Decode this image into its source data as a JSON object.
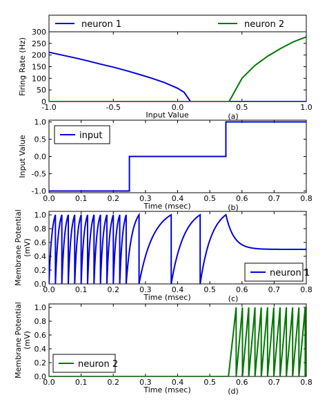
{
  "chart_data": [
    {
      "id": "a",
      "type": "line",
      "panel_label": "(a)",
      "xlabel": "Input Value",
      "ylabel": "Firing Rate (Hz)",
      "xlim": [
        -1.0,
        1.0
      ],
      "ylim": [
        0,
        300
      ],
      "xticks": [
        "-1.0",
        "-0.5",
        "0.0",
        "0.5",
        "1.0"
      ],
      "yticks": [
        "0",
        "50",
        "100",
        "150",
        "200",
        "250",
        "300"
      ],
      "legend_position": "top (outside, above axes)",
      "grid": false,
      "series": [
        {
          "name": "neuron 1",
          "color": "#0000dd",
          "x": [
            -1.0,
            -0.9,
            -0.8,
            -0.7,
            -0.6,
            -0.5,
            -0.4,
            -0.3,
            -0.2,
            -0.1,
            0.0,
            0.05,
            0.1,
            0.4,
            1.0
          ],
          "y": [
            212,
            200,
            188,
            175,
            161,
            148,
            133,
            117,
            100,
            81,
            57,
            40,
            0,
            0,
            0
          ]
        },
        {
          "name": "neuron 2",
          "color": "#007700",
          "x": [
            -1.0,
            0.4,
            0.5,
            0.6,
            0.7,
            0.8,
            0.9,
            1.0
          ],
          "y": [
            0,
            0,
            100,
            155,
            195,
            228,
            257,
            278
          ]
        }
      ]
    },
    {
      "id": "b",
      "type": "line",
      "panel_label": "(b)",
      "xlabel": "Time (msec)",
      "ylabel": "Input Value",
      "xlim": [
        0.0,
        0.8
      ],
      "ylim": [
        -1.05,
        1.05
      ],
      "xticks": [
        "0.0",
        "0.1",
        "0.2",
        "0.3",
        "0.4",
        "0.5",
        "0.6",
        "0.7",
        "0.8"
      ],
      "yticks": [
        "-1.0",
        "-0.5",
        "0.0",
        "0.5",
        "1.0"
      ],
      "legend_position": "upper left",
      "grid": false,
      "series": [
        {
          "name": "input",
          "color": "#0000dd",
          "x": [
            0.0,
            0.25,
            0.25,
            0.55,
            0.55,
            0.8
          ],
          "y": [
            -1.0,
            -1.0,
            0.0,
            0.0,
            1.0,
            1.0
          ]
        }
      ]
    },
    {
      "id": "c",
      "type": "line",
      "panel_label": "(c)",
      "xlabel": "Time (msec)",
      "ylabel": [
        "Membrane Potential",
        "(mV)"
      ],
      "xlim": [
        0.0,
        0.8
      ],
      "ylim": [
        0.0,
        1.05
      ],
      "xticks": [
        "0.0",
        "0.1",
        "0.2",
        "0.3",
        "0.4",
        "0.5",
        "0.6",
        "0.7",
        "0.8"
      ],
      "yticks": [
        "0.0",
        "0.2",
        "0.4",
        "0.6",
        "0.8",
        "1.0"
      ],
      "legend_position": "lower right",
      "grid": false,
      "series": [
        {
          "name": "neuron 1",
          "color": "#0000dd",
          "spike_times": [
            0.0,
            0.02,
            0.04,
            0.06,
            0.08,
            0.1,
            0.12,
            0.14,
            0.16,
            0.18,
            0.2,
            0.22,
            0.24,
            0.28,
            0.38,
            0.47
          ],
          "decay_start": 0.55,
          "steady_value": 0.5
        }
      ]
    },
    {
      "id": "d",
      "type": "line",
      "panel_label": "(d)",
      "xlabel": "Time (msec)",
      "ylabel": [
        "Membrane Potential",
        "(mV)"
      ],
      "xlim": [
        0.0,
        0.8
      ],
      "ylim": [
        0.0,
        1.05
      ],
      "xticks": [
        "0.0",
        "0.1",
        "0.2",
        "0.3",
        "0.4",
        "0.5",
        "0.6",
        "0.7",
        "0.8"
      ],
      "yticks": [
        "0.0",
        "0.2",
        "0.4",
        "0.6",
        "0.8",
        "1.0"
      ],
      "legend_position": "lower left",
      "grid": false,
      "series": [
        {
          "name": "neuron 2",
          "color": "#007700",
          "onset": 0.558,
          "first_spike": 0.582,
          "spike_interval": 0.0195
        }
      ]
    }
  ]
}
